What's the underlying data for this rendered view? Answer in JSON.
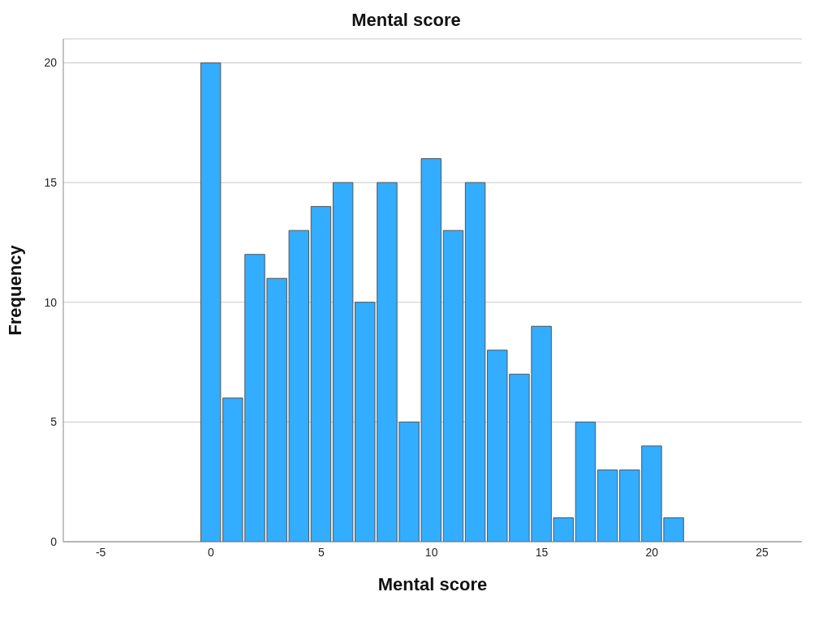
{
  "chart_data": {
    "type": "histogram",
    "title": "Mental score",
    "xlabel": "Mental score",
    "ylabel": "Frequency",
    "bins": [
      -0.5,
      0.5,
      1.5,
      2.5,
      3.5,
      4.5,
      5.5,
      6.5,
      7.5,
      8.5,
      9.5,
      10.5,
      11.5,
      12.5,
      13.5,
      14.5,
      15.5,
      16.5,
      17.5,
      18.5,
      19.5,
      20.5,
      21.5
    ],
    "values": [
      20,
      6,
      12,
      11,
      13,
      14,
      15,
      10,
      15,
      5,
      16,
      13,
      15,
      8,
      7,
      9,
      1,
      5,
      3,
      3,
      4,
      1
    ],
    "color": "#33adff",
    "xlim": [
      -6.7,
      26.8
    ],
    "xticks": [
      -5,
      0,
      5,
      10,
      15,
      20,
      25
    ],
    "ylim": [
      0,
      21
    ],
    "yticks": [
      0,
      5,
      10,
      15,
      20
    ],
    "grid": "y"
  }
}
